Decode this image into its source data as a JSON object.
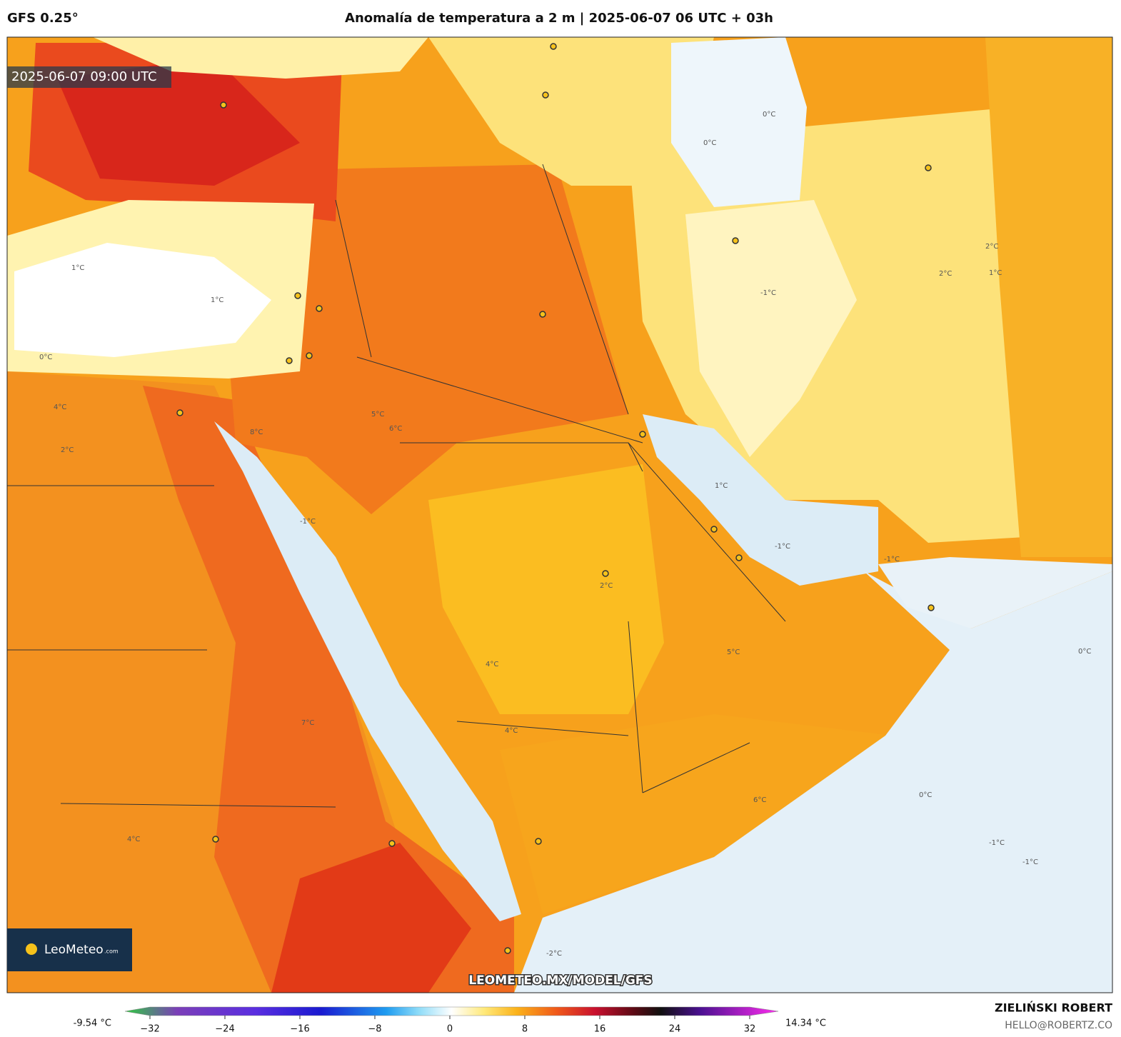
{
  "header": {
    "model": "GFS 0.25°",
    "title": "Anomalía de temperatura a 2 m | 2025-06-07 06 UTC + 03h"
  },
  "map": {
    "valid_time": "2025-06-07 09:00 UTC",
    "watermark": "LEOMETEO.MX/MODEL/GFS",
    "logo": "LeoMeteo",
    "logo_suffix": ".com",
    "contour_labels": [
      "1°C",
      "1°C",
      "0°C",
      "0°C",
      "0°C",
      "4°C",
      "2°C",
      "6°C",
      "8°C",
      "5°C",
      "-1°C",
      "2°C",
      "1°C",
      "2°C",
      "-1°C",
      "4°C",
      "5°C",
      "4°C",
      "2°C",
      "-1°C",
      "-1°C",
      "0°C",
      "0°C",
      "-1°C",
      "-1°C",
      "6°C",
      "-2°C",
      "4°C",
      "7°C",
      "1°C"
    ]
  },
  "colorbar": {
    "min_label": "-9.54 °C",
    "max_label": "14.34 °C",
    "range": [
      -32,
      32
    ],
    "ticks": [
      {
        "value": -32,
        "label": "−32"
      },
      {
        "value": -24,
        "label": "−24"
      },
      {
        "value": -16,
        "label": "−16"
      },
      {
        "value": -8,
        "label": "−8"
      },
      0,
      8,
      16,
      24,
      32
    ]
  },
  "credits": {
    "author": "ZIELIŃSKI ROBERT",
    "contact": "HELLO@ROBERTZ.CO"
  }
}
